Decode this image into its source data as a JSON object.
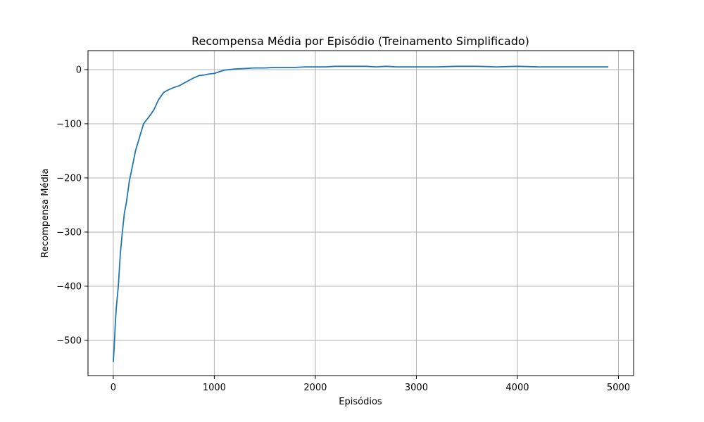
{
  "chart_data": {
    "type": "line",
    "title": "Recompensa Média por Episódio (Treinamento Simplificado)",
    "xlabel": "Episódios",
    "ylabel": "Recompensa Média",
    "xlim": [
      -250,
      5150
    ],
    "ylim": [
      -565,
      35
    ],
    "xticks": [
      0,
      1000,
      2000,
      3000,
      4000,
      5000
    ],
    "xtick_labels": [
      "0",
      "1000",
      "2000",
      "3000",
      "4000",
      "5000"
    ],
    "yticks": [
      0,
      -100,
      -200,
      -300,
      -400,
      -500
    ],
    "ytick_labels": [
      "0",
      "−100",
      "−200",
      "−300",
      "−400",
      "−500"
    ],
    "grid": true,
    "legend": "none",
    "colors": {
      "line": "#1f77b4",
      "grid": "#b0b0b0"
    },
    "series": [
      {
        "x": [
          0,
          10,
          20,
          30,
          50,
          70,
          90,
          110,
          130,
          160,
          190,
          220,
          260,
          300,
          350,
          400,
          450,
          500,
          550,
          600,
          650,
          700,
          750,
          800,
          850,
          900,
          950,
          1000,
          1050,
          1100,
          1150,
          1200,
          1300,
          1400,
          1500,
          1600,
          1700,
          1800,
          1900,
          2000,
          2100,
          2200,
          2300,
          2400,
          2500,
          2600,
          2700,
          2800,
          2900,
          3000,
          3200,
          3400,
          3600,
          3800,
          4000,
          4200,
          4400,
          4600,
          4800,
          4900
        ],
        "values": [
          -540,
          -510,
          -470,
          -440,
          -400,
          -340,
          -300,
          -265,
          -245,
          -205,
          -178,
          -150,
          -125,
          -100,
          -88,
          -75,
          -55,
          -42,
          -37,
          -33,
          -30,
          -25,
          -20,
          -15,
          -11,
          -10,
          -8,
          -7,
          -4,
          -1,
          0,
          1,
          2,
          3,
          3,
          4,
          4,
          4,
          5,
          5,
          5,
          6,
          6,
          6,
          6,
          5,
          6,
          5,
          5,
          5,
          5,
          6,
          6,
          5,
          6,
          5,
          5,
          5,
          5,
          5
        ]
      }
    ]
  }
}
